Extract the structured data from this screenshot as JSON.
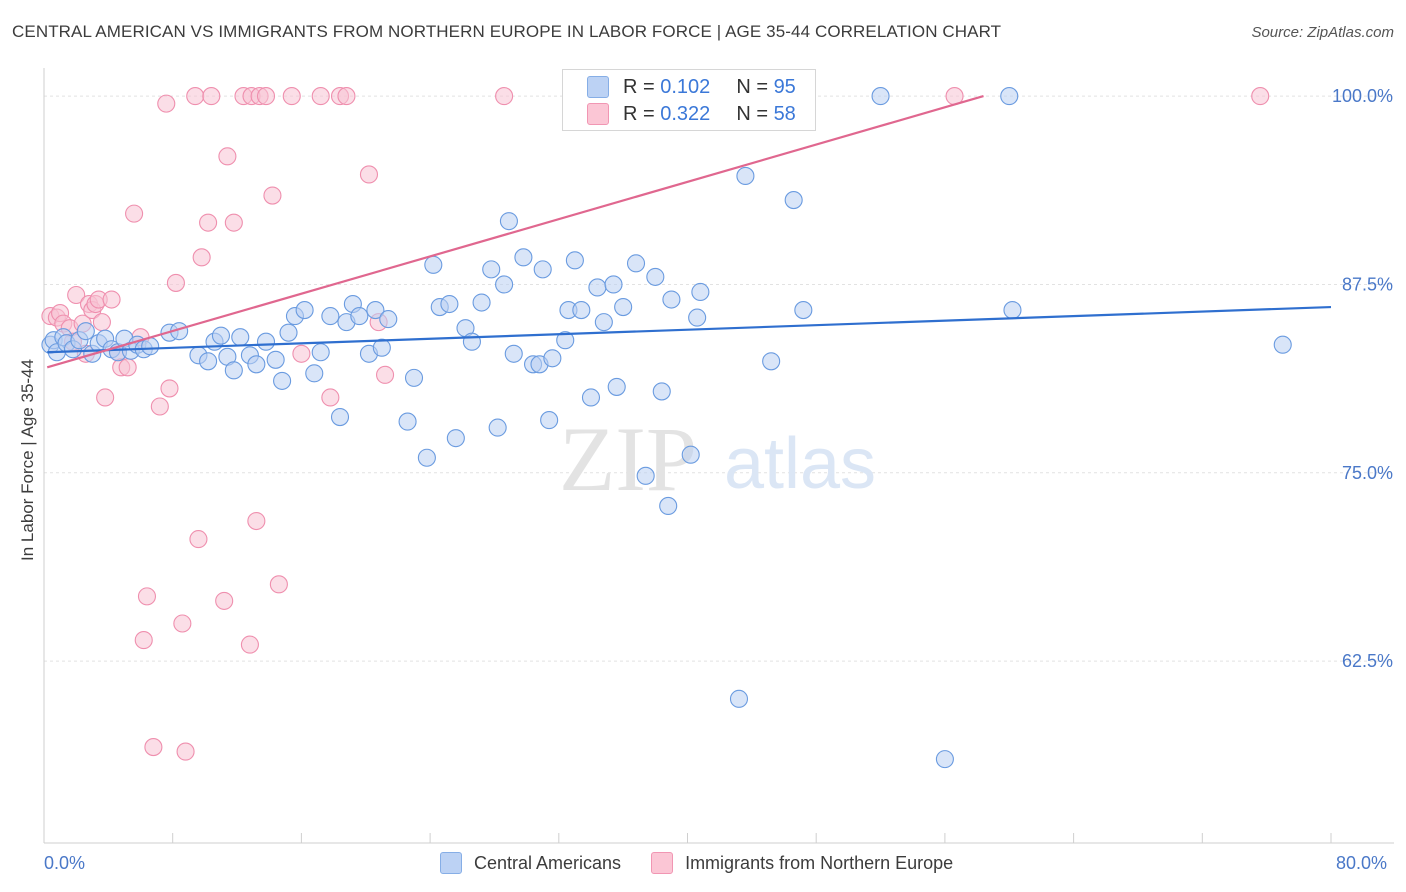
{
  "header": {
    "title": "CENTRAL AMERICAN VS IMMIGRANTS FROM NORTHERN EUROPE IN LABOR FORCE | AGE 35-44 CORRELATION CHART",
    "source": "Source: ZipAtlas.com"
  },
  "watermark": {
    "zip": "ZIP",
    "atlas": "atlas"
  },
  "legend_box": {
    "rows": [
      {
        "r_label": "R =",
        "r_value": "0.102",
        "n_label": "N =",
        "n_value": "95"
      },
      {
        "r_label": "R =",
        "r_value": "0.322",
        "n_label": "N =",
        "n_value": "58"
      }
    ]
  },
  "chart_data": {
    "type": "scatter",
    "title": "CENTRAL AMERICAN VS IMMIGRANTS FROM NORTHERN EUROPE IN LABOR FORCE | AGE 35-44 CORRELATION CHART",
    "xlabel": "",
    "ylabel": "In Labor Force | Age 35-44",
    "xlim": [
      0,
      80
    ],
    "ylim": [
      50.5,
      101.2
    ],
    "x_tick_labels": [
      "0.0%",
      "80.0%"
    ],
    "y_ticks": [
      100,
      87.5,
      75,
      62.5
    ],
    "y_tick_labels": [
      "100.0%",
      "87.5%",
      "75.0%",
      "62.5%"
    ],
    "colors": {
      "blue": "#6a9be0",
      "blue_fill": "#b9d0f2",
      "blue_line": "#2f6fcf",
      "pink": "#ef8fae",
      "pink_fill": "#f8c3d3",
      "pink_line": "#e0678f"
    },
    "series": [
      {
        "name": "Central Americans",
        "color": "blue",
        "R": 0.102,
        "N": 95,
        "trend": {
          "x": [
            0.2,
            80
          ],
          "y": [
            83.0,
            86.0
          ]
        },
        "points": [
          [
            0.4,
            83.5
          ],
          [
            0.6,
            83.8
          ],
          [
            0.8,
            83.0
          ],
          [
            1.2,
            84.0
          ],
          [
            1.4,
            83.6
          ],
          [
            1.8,
            83.2
          ],
          [
            2.2,
            83.8
          ],
          [
            2.6,
            84.4
          ],
          [
            3.0,
            82.9
          ],
          [
            3.4,
            83.6
          ],
          [
            3.8,
            83.9
          ],
          [
            4.2,
            83.2
          ],
          [
            4.6,
            83.0
          ],
          [
            5.0,
            83.9
          ],
          [
            5.4,
            83.1
          ],
          [
            5.8,
            83.5
          ],
          [
            6.2,
            83.2
          ],
          [
            6.6,
            83.4
          ],
          [
            7.8,
            84.3
          ],
          [
            8.4,
            84.4
          ],
          [
            9.6,
            82.8
          ],
          [
            10.2,
            82.4
          ],
          [
            10.6,
            83.7
          ],
          [
            11.0,
            84.1
          ],
          [
            11.4,
            82.7
          ],
          [
            11.8,
            81.8
          ],
          [
            12.2,
            84.0
          ],
          [
            12.8,
            82.8
          ],
          [
            13.2,
            82.2
          ],
          [
            13.8,
            83.7
          ],
          [
            14.4,
            82.5
          ],
          [
            14.8,
            81.1
          ],
          [
            15.2,
            84.3
          ],
          [
            15.6,
            85.4
          ],
          [
            16.2,
            85.8
          ],
          [
            16.8,
            81.6
          ],
          [
            17.2,
            83.0
          ],
          [
            17.8,
            85.4
          ],
          [
            18.4,
            78.7
          ],
          [
            18.8,
            85.0
          ],
          [
            19.2,
            86.2
          ],
          [
            19.6,
            85.4
          ],
          [
            20.2,
            82.9
          ],
          [
            20.6,
            85.8
          ],
          [
            21.0,
            83.3
          ],
          [
            21.4,
            85.2
          ],
          [
            22.6,
            78.4
          ],
          [
            23.0,
            81.3
          ],
          [
            23.8,
            76.0
          ],
          [
            24.2,
            88.8
          ],
          [
            24.6,
            86.0
          ],
          [
            25.2,
            86.2
          ],
          [
            25.6,
            77.3
          ],
          [
            26.2,
            84.6
          ],
          [
            26.6,
            83.7
          ],
          [
            27.2,
            86.3
          ],
          [
            27.8,
            88.5
          ],
          [
            28.2,
            78.0
          ],
          [
            28.6,
            87.5
          ],
          [
            28.9,
            91.7
          ],
          [
            29.2,
            82.9
          ],
          [
            29.8,
            89.3
          ],
          [
            30.4,
            82.2
          ],
          [
            30.8,
            82.2
          ],
          [
            31.0,
            88.5
          ],
          [
            31.4,
            78.5
          ],
          [
            31.6,
            82.6
          ],
          [
            32.4,
            83.8
          ],
          [
            32.6,
            85.8
          ],
          [
            33.0,
            89.1
          ],
          [
            33.4,
            85.8
          ],
          [
            34.0,
            80.0
          ],
          [
            34.4,
            87.3
          ],
          [
            34.8,
            85.0
          ],
          [
            35.4,
            87.5
          ],
          [
            35.6,
            80.7
          ],
          [
            36.0,
            86.0
          ],
          [
            36.8,
            88.9
          ],
          [
            37.4,
            74.8
          ],
          [
            38.0,
            88.0
          ],
          [
            38.4,
            80.4
          ],
          [
            38.8,
            72.8
          ],
          [
            39.0,
            86.5
          ],
          [
            40.2,
            76.2
          ],
          [
            40.6,
            85.3
          ],
          [
            40.8,
            87.0
          ],
          [
            43.2,
            60.0
          ],
          [
            43.6,
            94.7
          ],
          [
            45.2,
            82.4
          ],
          [
            46.6,
            93.1
          ],
          [
            47.2,
            85.8
          ],
          [
            52.0,
            100.0
          ],
          [
            56.0,
            56.0
          ],
          [
            60.0,
            100.0
          ],
          [
            60.2,
            85.8
          ],
          [
            77.0,
            83.5
          ]
        ]
      },
      {
        "name": "Immigrants from Northern Europe",
        "color": "pink",
        "R": 0.322,
        "N": 58,
        "trend": {
          "x": [
            0.2,
            58.4
          ],
          "y": [
            82.0,
            100.0
          ]
        },
        "points": [
          [
            0.4,
            85.4
          ],
          [
            0.8,
            85.3
          ],
          [
            1.0,
            85.6
          ],
          [
            1.2,
            84.9
          ],
          [
            1.6,
            84.6
          ],
          [
            1.8,
            83.7
          ],
          [
            2.0,
            86.8
          ],
          [
            2.4,
            84.9
          ],
          [
            2.6,
            82.9
          ],
          [
            2.8,
            86.2
          ],
          [
            3.0,
            85.8
          ],
          [
            3.2,
            86.2
          ],
          [
            3.4,
            86.5
          ],
          [
            3.6,
            85.0
          ],
          [
            3.8,
            80.0
          ],
          [
            4.2,
            86.5
          ],
          [
            4.6,
            83.0
          ],
          [
            4.8,
            82.0
          ],
          [
            5.2,
            82.0
          ],
          [
            5.6,
            92.2
          ],
          [
            6.0,
            84.0
          ],
          [
            6.4,
            66.8
          ],
          [
            6.2,
            63.9
          ],
          [
            6.8,
            56.8
          ],
          [
            7.2,
            79.4
          ],
          [
            7.6,
            99.5
          ],
          [
            7.8,
            80.6
          ],
          [
            8.2,
            87.6
          ],
          [
            8.6,
            65.0
          ],
          [
            8.8,
            56.5
          ],
          [
            9.4,
            100.0
          ],
          [
            9.6,
            70.6
          ],
          [
            9.8,
            89.3
          ],
          [
            10.2,
            91.6
          ],
          [
            10.4,
            100.0
          ],
          [
            11.2,
            66.5
          ],
          [
            11.4,
            96.0
          ],
          [
            11.8,
            91.6
          ],
          [
            12.4,
            100.0
          ],
          [
            12.8,
            63.6
          ],
          [
            12.9,
            100.0
          ],
          [
            13.2,
            71.8
          ],
          [
            13.4,
            100.0
          ],
          [
            13.8,
            100.0
          ],
          [
            14.2,
            93.4
          ],
          [
            14.6,
            67.6
          ],
          [
            15.4,
            100.0
          ],
          [
            16.0,
            82.9
          ],
          [
            17.2,
            100.0
          ],
          [
            17.8,
            80.0
          ],
          [
            18.4,
            100.0
          ],
          [
            18.8,
            100.0
          ],
          [
            20.2,
            94.8
          ],
          [
            20.8,
            85.0
          ],
          [
            21.2,
            81.5
          ],
          [
            28.6,
            100.0
          ],
          [
            56.6,
            100.0
          ],
          [
            75.6,
            100.0
          ]
        ]
      }
    ]
  },
  "legend_bottom": {
    "items": [
      "Central Americans",
      "Immigrants from Northern Europe"
    ]
  }
}
